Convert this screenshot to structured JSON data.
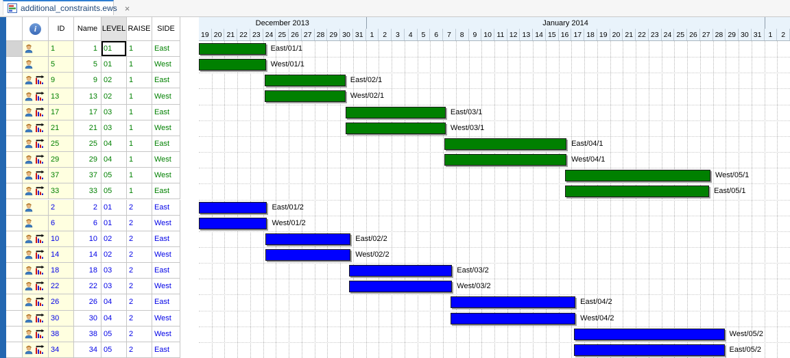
{
  "tab": {
    "title": "additional_constraints.ews",
    "close": "×"
  },
  "icon_names": {
    "file": "ews-file-icon",
    "close": "close-icon",
    "info": "info-icon",
    "worker": "worker-icon",
    "chart": "constraint-chart-icon"
  },
  "table": {
    "headers": {
      "id": "ID",
      "name": "Name",
      "level": "LEVEL",
      "raise": "RAISE",
      "side": "SIDE"
    },
    "rows": [
      {
        "icons": [
          "worker"
        ],
        "id": "1",
        "name": "1",
        "level": "01",
        "raise": "1",
        "side": "East",
        "selected": true,
        "focused": "level"
      },
      {
        "icons": [
          "worker"
        ],
        "id": "5",
        "name": "5",
        "level": "01",
        "raise": "1",
        "side": "West"
      },
      {
        "icons": [
          "worker",
          "chart"
        ],
        "id": "9",
        "name": "9",
        "level": "02",
        "raise": "1",
        "side": "East"
      },
      {
        "icons": [
          "worker",
          "chart"
        ],
        "id": "13",
        "name": "13",
        "level": "02",
        "raise": "1",
        "side": "West"
      },
      {
        "icons": [
          "worker",
          "chart"
        ],
        "id": "17",
        "name": "17",
        "level": "03",
        "raise": "1",
        "side": "East"
      },
      {
        "icons": [
          "worker",
          "chart"
        ],
        "id": "21",
        "name": "21",
        "level": "03",
        "raise": "1",
        "side": "West"
      },
      {
        "icons": [
          "worker",
          "chart"
        ],
        "id": "25",
        "name": "25",
        "level": "04",
        "raise": "1",
        "side": "East"
      },
      {
        "icons": [
          "worker",
          "chart"
        ],
        "id": "29",
        "name": "29",
        "level": "04",
        "raise": "1",
        "side": "West"
      },
      {
        "icons": [
          "worker",
          "chart"
        ],
        "id": "37",
        "name": "37",
        "level": "05",
        "raise": "1",
        "side": "West"
      },
      {
        "icons": [
          "worker",
          "chart"
        ],
        "id": "33",
        "name": "33",
        "level": "05",
        "raise": "1",
        "side": "East"
      },
      {
        "icons": [
          "worker"
        ],
        "id": "2",
        "name": "2",
        "level": "01",
        "raise": "2",
        "side": "East"
      },
      {
        "icons": [
          "worker"
        ],
        "id": "6",
        "name": "6",
        "level": "01",
        "raise": "2",
        "side": "West"
      },
      {
        "icons": [
          "worker",
          "chart"
        ],
        "id": "10",
        "name": "10",
        "level": "02",
        "raise": "2",
        "side": "East"
      },
      {
        "icons": [
          "worker",
          "chart"
        ],
        "id": "14",
        "name": "14",
        "level": "02",
        "raise": "2",
        "side": "West"
      },
      {
        "icons": [
          "worker",
          "chart"
        ],
        "id": "18",
        "name": "18",
        "level": "03",
        "raise": "2",
        "side": "East"
      },
      {
        "icons": [
          "worker",
          "chart"
        ],
        "id": "22",
        "name": "22",
        "level": "03",
        "raise": "2",
        "side": "West"
      },
      {
        "icons": [
          "worker",
          "chart"
        ],
        "id": "26",
        "name": "26",
        "level": "04",
        "raise": "2",
        "side": "East"
      },
      {
        "icons": [
          "worker",
          "chart"
        ],
        "id": "30",
        "name": "30",
        "level": "04",
        "raise": "2",
        "side": "West"
      },
      {
        "icons": [
          "worker",
          "chart"
        ],
        "id": "38",
        "name": "38",
        "level": "05",
        "raise": "2",
        "side": "West"
      },
      {
        "icons": [
          "worker",
          "chart"
        ],
        "id": "34",
        "name": "34",
        "level": "05",
        "raise": "2",
        "side": "East"
      }
    ]
  },
  "timeline": {
    "start_date": "2013-12-19",
    "months": [
      {
        "label": "December 2013",
        "days": [
          19,
          20,
          21,
          22,
          23,
          24,
          25,
          26,
          27,
          28,
          29,
          30,
          31
        ]
      },
      {
        "label": "January 2014",
        "days": [
          1,
          2,
          3,
          4,
          5,
          6,
          7,
          8,
          9,
          10,
          11,
          12,
          13,
          14,
          15,
          16,
          17,
          18,
          19,
          20,
          21,
          22,
          23,
          24,
          25,
          26,
          27,
          28,
          29,
          30,
          31
        ]
      },
      {
        "label": "",
        "days": [
          1,
          2
        ]
      }
    ]
  },
  "chart_data": {
    "type": "gantt",
    "title": "",
    "day0": "2013-12-19",
    "days_visible": 46,
    "axis_months": [
      "December 2013",
      "January 2014"
    ],
    "tasks": [
      {
        "row": 1,
        "label": "East/01/1",
        "raise": 1,
        "start_day": 0,
        "end_day": 5.1,
        "start_date": "2013-12-19",
        "end_date": "2013-12-24"
      },
      {
        "row": 2,
        "label": "West/01/1",
        "raise": 1,
        "start_day": 0,
        "end_day": 5.1,
        "start_date": "2013-12-19",
        "end_date": "2013-12-24"
      },
      {
        "row": 3,
        "label": "East/02/1",
        "raise": 1,
        "start_day": 5.1,
        "end_day": 11.3,
        "start_date": "2013-12-24",
        "end_date": "2013-12-30"
      },
      {
        "row": 4,
        "label": "West/02/1",
        "raise": 1,
        "start_day": 5.1,
        "end_day": 11.3,
        "start_date": "2013-12-24",
        "end_date": "2013-12-30"
      },
      {
        "row": 5,
        "label": "East/03/1",
        "raise": 1,
        "start_day": 11.4,
        "end_day": 19.1,
        "start_date": "2013-12-30",
        "end_date": "2014-01-07"
      },
      {
        "row": 6,
        "label": "West/03/1",
        "raise": 1,
        "start_day": 11.4,
        "end_day": 19.1,
        "start_date": "2013-12-30",
        "end_date": "2014-01-07"
      },
      {
        "row": 7,
        "label": "East/04/1",
        "raise": 1,
        "start_day": 19.1,
        "end_day": 28.5,
        "start_date": "2014-01-07",
        "end_date": "2014-01-16"
      },
      {
        "row": 8,
        "label": "West/04/1",
        "raise": 1,
        "start_day": 19.1,
        "end_day": 28.5,
        "start_date": "2014-01-07",
        "end_date": "2014-01-16"
      },
      {
        "row": 9,
        "label": "West/05/1",
        "raise": 1,
        "start_day": 28.5,
        "end_day": 39.7,
        "start_date": "2014-01-16",
        "end_date": "2014-01-28"
      },
      {
        "row": 10,
        "label": "East/05/1",
        "raise": 1,
        "start_day": 28.5,
        "end_day": 39.6,
        "start_date": "2014-01-16",
        "end_date": "2014-01-28"
      },
      {
        "row": 11,
        "label": "East/01/2",
        "raise": 2,
        "start_day": 0,
        "end_day": 5.2,
        "start_date": "2013-12-19",
        "end_date": "2013-12-24"
      },
      {
        "row": 12,
        "label": "West/01/2",
        "raise": 2,
        "start_day": 0,
        "end_day": 5.2,
        "start_date": "2013-12-19",
        "end_date": "2013-12-24"
      },
      {
        "row": 13,
        "label": "East/02/2",
        "raise": 2,
        "start_day": 5.2,
        "end_day": 11.7,
        "start_date": "2013-12-24",
        "end_date": "2013-12-31"
      },
      {
        "row": 14,
        "label": "West/02/2",
        "raise": 2,
        "start_day": 5.2,
        "end_day": 11.7,
        "start_date": "2013-12-24",
        "end_date": "2013-12-31"
      },
      {
        "row": 15,
        "label": "East/03/2",
        "raise": 2,
        "start_day": 11.7,
        "end_day": 19.6,
        "start_date": "2013-12-31",
        "end_date": "2014-01-08"
      },
      {
        "row": 16,
        "label": "West/03/2",
        "raise": 2,
        "start_day": 11.7,
        "end_day": 19.6,
        "start_date": "2013-12-31",
        "end_date": "2014-01-08"
      },
      {
        "row": 17,
        "label": "East/04/2",
        "raise": 2,
        "start_day": 19.6,
        "end_day": 29.2,
        "start_date": "2014-01-08",
        "end_date": "2014-01-17"
      },
      {
        "row": 18,
        "label": "West/04/2",
        "raise": 2,
        "start_day": 19.6,
        "end_day": 29.2,
        "start_date": "2014-01-08",
        "end_date": "2014-01-17"
      },
      {
        "row": 19,
        "label": "West/05/2",
        "raise": 2,
        "start_day": 29.2,
        "end_day": 40.8,
        "start_date": "2014-01-17",
        "end_date": "2014-01-29"
      },
      {
        "row": 20,
        "label": "East/05/2",
        "raise": 2,
        "start_day": 29.2,
        "end_day": 40.8,
        "start_date": "2014-01-17",
        "end_date": "2014-01-29"
      }
    ]
  },
  "colors": {
    "raise1_bar": "#008000",
    "raise2_bar": "#0000ff",
    "raise1_text": "#008000",
    "raise2_text": "#0000e6",
    "tab_accent": "#2d7dd2",
    "timeline_bg": "#e9f3fb",
    "cell_yellow": "#ffffe0",
    "strip_blue": "#2367b1"
  }
}
